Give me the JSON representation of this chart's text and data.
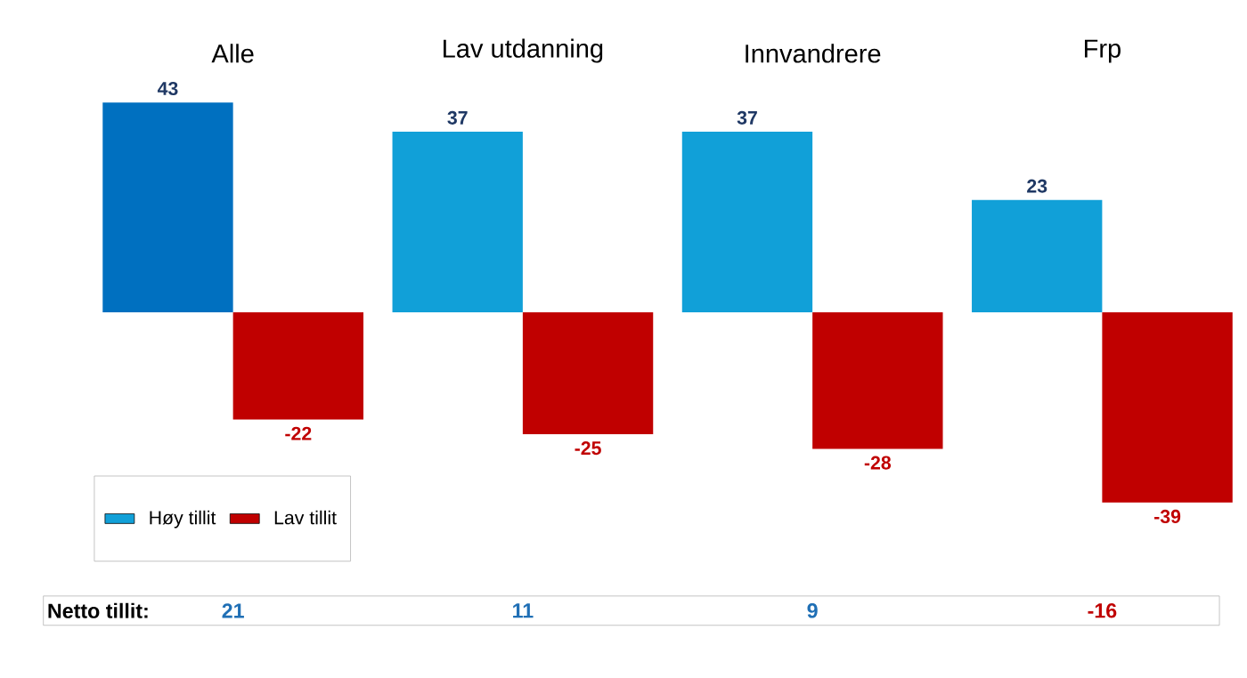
{
  "chart_data": {
    "type": "bar",
    "categories": [
      "Alle",
      "Lav utdanning",
      "Innvandrere",
      "Frp"
    ],
    "series": [
      {
        "name": "Høy tillit",
        "color": "#11a0d8",
        "colors": [
          "#0070c0",
          "#11a0d8",
          "#11a0d8",
          "#11a0d8"
        ],
        "values": [
          43,
          37,
          37,
          23
        ]
      },
      {
        "name": "Lav tillit",
        "color": "#c00000",
        "values": [
          -22,
          -25,
          -28,
          -39
        ]
      }
    ],
    "data_labels": true,
    "legend": "bottom left",
    "annotations": [
      "Netto tillit:",
      "21",
      "11",
      "9",
      "-16"
    ]
  }
}
